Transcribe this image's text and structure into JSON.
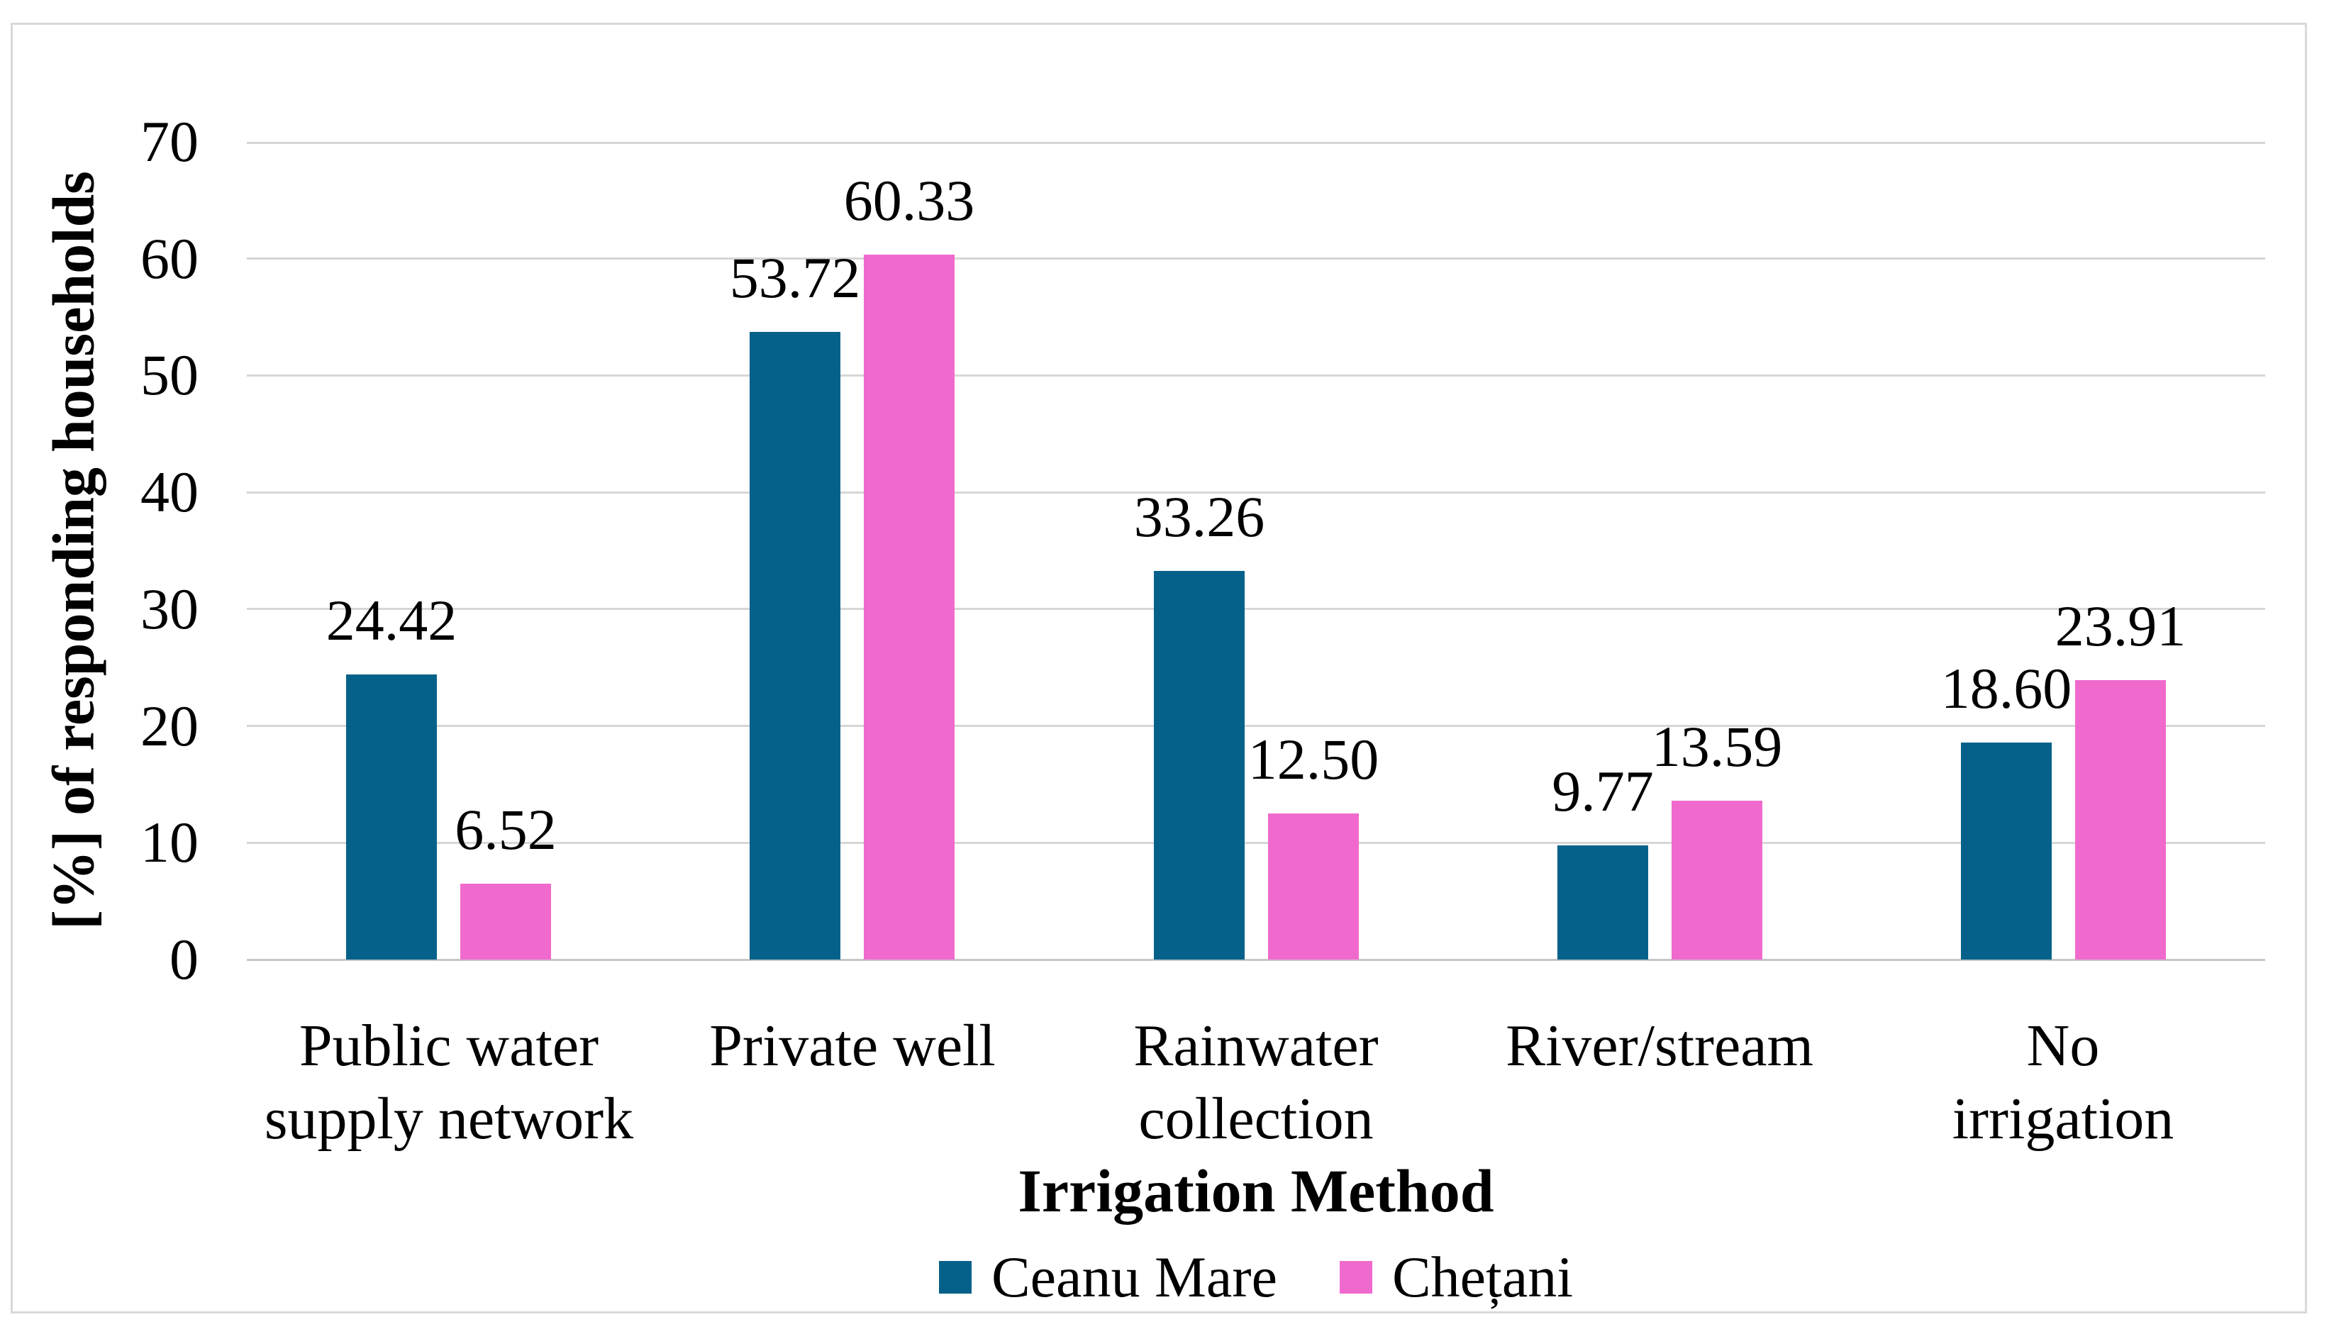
{
  "figure": {
    "background_color": "#ffffff",
    "border_color": "#d9d9d9",
    "gridline_color": "#d6d6d6",
    "axis_line_color": "#c6c6c6",
    "text_color": "#000000"
  },
  "chart_data": {
    "type": "bar",
    "title": "",
    "xlabel": "Irrigation Method",
    "ylabel": "[%] of responding households",
    "ylim": [
      0,
      70
    ],
    "yticks": [
      0,
      10,
      20,
      30,
      40,
      50,
      60,
      70
    ],
    "grid": "horizontal",
    "legend_position": "bottom",
    "categories": [
      "Public water supply network",
      "Private well",
      "Rainwater collection",
      "River/stream",
      "No irrigation"
    ],
    "categories_wrapped": [
      [
        "Public water",
        "supply network"
      ],
      [
        "Private well"
      ],
      [
        "Rainwater",
        "collection"
      ],
      [
        "River/stream"
      ],
      [
        "No irrigation"
      ]
    ],
    "series": [
      {
        "name": "Ceanu Mare",
        "color": "#06618a",
        "values": [
          24.42,
          53.72,
          33.26,
          9.77,
          18.6
        ],
        "labels": [
          "24.42",
          "53.72",
          "33.26",
          "9.77",
          "18.60"
        ]
      },
      {
        "name": "Chețani",
        "color": "#f06acd",
        "values": [
          6.52,
          60.33,
          12.5,
          13.59,
          23.91
        ],
        "labels": [
          "6.52",
          "60.33",
          "12.50",
          "13.59",
          "23.91"
        ]
      }
    ]
  }
}
